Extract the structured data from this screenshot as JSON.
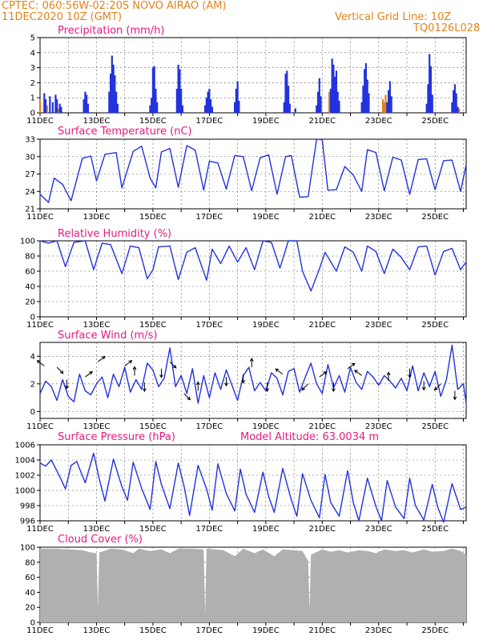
{
  "header": {
    "line1_left": "CPTEC:   060:56W-02:20S   NOVO AIRAO (AM)",
    "line2_left": "11DEC2020 10Z (GMT)",
    "line1_right": "Vertical Grid Line: 10Z",
    "line2_right": "TQ0126L028"
  },
  "colors": {
    "header": "#e2831b",
    "title": "#e5197f",
    "series": "#2233dd",
    "cloud": "#b0b0b0",
    "axis": "#000000"
  },
  "x_axis": {
    "labels": [
      "11DEC",
      "13DEC",
      "15DEC",
      "17DEC",
      "19DEC",
      "21DEC",
      "23DEC",
      "25DEC"
    ],
    "start_day": 11,
    "end_day": 26.1
  },
  "chart_data": [
    {
      "id": "precip",
      "type": "bar",
      "title": "Precipitation (mm/h)",
      "ylim": [
        0,
        5
      ],
      "yticks": [
        "0",
        "1",
        "2",
        "3",
        "4",
        "5"
      ],
      "bars": [
        {
          "day": 11.15,
          "v": 1.3
        },
        {
          "day": 11.2,
          "v": 0.9
        },
        {
          "day": 11.35,
          "v": 1.1
        },
        {
          "day": 11.45,
          "v": 0.7
        },
        {
          "day": 11.55,
          "v": 1.2
        },
        {
          "day": 11.6,
          "v": 0.9
        },
        {
          "day": 11.7,
          "v": 0.6
        },
        {
          "day": 11.75,
          "v": 0.4
        },
        {
          "day": 12.55,
          "v": 0.9
        },
        {
          "day": 12.6,
          "v": 1.4
        },
        {
          "day": 12.65,
          "v": 1.2
        },
        {
          "day": 12.7,
          "v": 0.6
        },
        {
          "day": 13.45,
          "v": 1.4
        },
        {
          "day": 13.5,
          "v": 2.6
        },
        {
          "day": 13.55,
          "v": 3.8
        },
        {
          "day": 13.6,
          "v": 3.2
        },
        {
          "day": 13.65,
          "v": 2.5
        },
        {
          "day": 13.7,
          "v": 1.4
        },
        {
          "day": 13.75,
          "v": 0.6
        },
        {
          "day": 14.9,
          "v": 0.5
        },
        {
          "day": 14.95,
          "v": 1.0
        },
        {
          "day": 15.0,
          "v": 3.0
        },
        {
          "day": 15.05,
          "v": 3.1
        },
        {
          "day": 15.1,
          "v": 1.6
        },
        {
          "day": 15.15,
          "v": 0.7
        },
        {
          "day": 15.85,
          "v": 1.6
        },
        {
          "day": 15.9,
          "v": 3.2
        },
        {
          "day": 15.95,
          "v": 2.9
        },
        {
          "day": 16.0,
          "v": 1.6
        },
        {
          "day": 16.05,
          "v": 0.5
        },
        {
          "day": 16.85,
          "v": 0.5
        },
        {
          "day": 16.9,
          "v": 1.0
        },
        {
          "day": 16.95,
          "v": 1.4
        },
        {
          "day": 17.0,
          "v": 1.6
        },
        {
          "day": 17.05,
          "v": 0.9
        },
        {
          "day": 17.1,
          "v": 0.4
        },
        {
          "day": 17.9,
          "v": 0.7
        },
        {
          "day": 17.95,
          "v": 1.6
        },
        {
          "day": 18.0,
          "v": 2.1
        },
        {
          "day": 18.05,
          "v": 0.8
        },
        {
          "day": 19.65,
          "v": 0.7
        },
        {
          "day": 19.7,
          "v": 2.6
        },
        {
          "day": 19.75,
          "v": 2.8
        },
        {
          "day": 19.8,
          "v": 1.8
        },
        {
          "day": 19.85,
          "v": 0.6
        },
        {
          "day": 20.05,
          "v": 0.3
        },
        {
          "day": 20.8,
          "v": 0.5
        },
        {
          "day": 20.85,
          "v": 1.4
        },
        {
          "day": 20.9,
          "v": 2.3
        },
        {
          "day": 20.95,
          "v": 1.1
        },
        {
          "day": 21.3,
          "v": 1.6
        },
        {
          "day": 21.35,
          "v": 3.6
        },
        {
          "day": 21.4,
          "v": 3.2
        },
        {
          "day": 21.45,
          "v": 2.4
        },
        {
          "day": 21.5,
          "v": 2.8
        },
        {
          "day": 21.55,
          "v": 1.4
        },
        {
          "day": 21.6,
          "v": 0.8
        },
        {
          "day": 22.4,
          "v": 0.7
        },
        {
          "day": 22.45,
          "v": 1.8
        },
        {
          "day": 22.5,
          "v": 2.9
        },
        {
          "day": 22.55,
          "v": 3.3
        },
        {
          "day": 22.6,
          "v": 2.2
        },
        {
          "day": 22.65,
          "v": 1.3
        },
        {
          "day": 23.3,
          "v": 0.7
        },
        {
          "day": 23.35,
          "v": 1.5
        },
        {
          "day": 23.4,
          "v": 2.1
        },
        {
          "day": 23.45,
          "v": 1.1
        },
        {
          "day": 24.7,
          "v": 0.6
        },
        {
          "day": 24.75,
          "v": 1.9
        },
        {
          "day": 24.8,
          "v": 3.9
        },
        {
          "day": 24.85,
          "v": 3.1
        },
        {
          "day": 24.9,
          "v": 1.2
        },
        {
          "day": 25.6,
          "v": 0.7
        },
        {
          "day": 25.65,
          "v": 1.5
        },
        {
          "day": 25.7,
          "v": 1.9
        },
        {
          "day": 25.75,
          "v": 1.3
        },
        {
          "day": 25.8,
          "v": 0.4
        }
      ],
      "orange_bars": [
        {
          "day": 11.0,
          "v": 0.9
        },
        {
          "day": 11.25,
          "v": 0.5
        },
        {
          "day": 11.65,
          "v": 0.3
        },
        {
          "day": 21.25,
          "v": 1.4
        },
        {
          "day": 21.45,
          "v": 1.0
        },
        {
          "day": 21.6,
          "v": 0.5
        },
        {
          "day": 23.15,
          "v": 0.9
        },
        {
          "day": 23.2,
          "v": 0.7
        },
        {
          "day": 23.25,
          "v": 1.2
        },
        {
          "day": 24.9,
          "v": 0.7
        },
        {
          "day": 25.85,
          "v": 0.3
        }
      ]
    },
    {
      "id": "temp",
      "type": "line",
      "title": "Surface Temperature (nC)",
      "ylim": [
        21,
        33
      ],
      "yticks": [
        "21",
        "24",
        "27",
        "30",
        "33"
      ],
      "x": [
        11.0,
        11.3,
        11.5,
        11.8,
        12.1,
        12.5,
        12.8,
        13.0,
        13.3,
        13.7,
        13.9,
        14.3,
        14.6,
        14.9,
        15.1,
        15.3,
        15.6,
        15.9,
        16.2,
        16.5,
        16.8,
        17.0,
        17.3,
        17.6,
        17.9,
        18.2,
        18.5,
        18.8,
        19.1,
        19.4,
        19.7,
        19.9,
        20.2,
        20.5,
        20.8,
        21.0,
        21.2,
        21.5,
        21.8,
        22.1,
        22.4,
        22.6,
        22.9,
        23.2,
        23.5,
        23.8,
        24.1,
        24.4,
        24.7,
        25.0,
        25.3,
        25.6,
        25.9,
        26.1
      ],
      "y": [
        23.5,
        22.1,
        26.3,
        25.2,
        22.4,
        29.7,
        30.1,
        25.8,
        30.4,
        30.7,
        24.6,
        30.9,
        31.8,
        26.3,
        24.6,
        30.8,
        31.4,
        24.7,
        31.9,
        31.1,
        24.2,
        29.2,
        28.9,
        24.4,
        30.2,
        30.0,
        24.1,
        29.8,
        30.3,
        23.5,
        30.0,
        30.2,
        23.0,
        23.1,
        33.0,
        32.9,
        24.2,
        24.3,
        28.3,
        26.8,
        24.0,
        31.2,
        30.7,
        24.1,
        29.9,
        29.4,
        23.5,
        29.5,
        29.6,
        24.3,
        29.3,
        29.4,
        24.0,
        28.6
      ]
    },
    {
      "id": "rh",
      "type": "line",
      "title": "Relative Humidity (%)",
      "ylim": [
        0,
        100
      ],
      "yticks": [
        "0",
        "20",
        "40",
        "60",
        "80",
        "100"
      ],
      "x": [
        11.0,
        11.3,
        11.6,
        11.9,
        12.2,
        12.6,
        12.9,
        13.2,
        13.5,
        13.9,
        14.2,
        14.5,
        14.8,
        15.0,
        15.2,
        15.6,
        15.9,
        16.2,
        16.5,
        16.9,
        17.1,
        17.4,
        17.7,
        18.0,
        18.3,
        18.6,
        18.9,
        19.2,
        19.5,
        19.8,
        20.1,
        20.3,
        20.6,
        20.9,
        21.1,
        21.5,
        21.8,
        22.1,
        22.4,
        22.6,
        22.9,
        23.2,
        23.5,
        23.8,
        24.1,
        24.4,
        24.7,
        25.0,
        25.3,
        25.6,
        25.9,
        26.1
      ],
      "y": [
        100,
        97,
        100,
        66,
        98,
        100,
        62,
        97,
        95,
        57,
        93,
        91,
        50,
        62,
        92,
        93,
        49,
        85,
        91,
        48,
        89,
        70,
        93,
        72,
        91,
        62,
        100,
        98,
        64,
        100,
        100,
        60,
        34,
        63,
        85,
        60,
        92,
        85,
        60,
        93,
        86,
        57,
        89,
        78,
        62,
        92,
        93,
        55,
        86,
        90,
        62,
        72
      ]
    },
    {
      "id": "wind",
      "type": "line",
      "title": "Surface Wind (m/s)",
      "ylim": [
        -0.5,
        5
      ],
      "yticks": [
        "0",
        "2",
        "4"
      ],
      "x": [
        11.0,
        11.2,
        11.4,
        11.6,
        11.8,
        12.0,
        12.2,
        12.4,
        12.6,
        12.8,
        13.0,
        13.2,
        13.4,
        13.6,
        13.8,
        14.0,
        14.2,
        14.4,
        14.6,
        14.8,
        15.0,
        15.2,
        15.4,
        15.6,
        15.8,
        16.0,
        16.2,
        16.4,
        16.6,
        16.8,
        17.0,
        17.2,
        17.4,
        17.6,
        17.8,
        18.0,
        18.2,
        18.4,
        18.6,
        18.8,
        19.0,
        19.2,
        19.4,
        19.6,
        19.8,
        20.0,
        20.2,
        20.4,
        20.6,
        20.8,
        21.0,
        21.2,
        21.4,
        21.6,
        21.8,
        22.0,
        22.2,
        22.4,
        22.6,
        22.8,
        23.0,
        23.2,
        23.4,
        23.6,
        23.8,
        24.0,
        24.2,
        24.4,
        24.6,
        24.8,
        25.0,
        25.2,
        25.4,
        25.6,
        25.8,
        26.0,
        26.1
      ],
      "y": [
        1.3,
        2.2,
        1.8,
        0.8,
        2.3,
        1.1,
        0.7,
        2.7,
        1.5,
        1.2,
        2.0,
        2.5,
        1.0,
        2.7,
        1.8,
        3.2,
        1.4,
        2.3,
        1.6,
        3.5,
        3.0,
        1.8,
        2.4,
        4.6,
        1.8,
        2.6,
        1.3,
        3.1,
        0.6,
        2.6,
        1.0,
        2.8,
        1.6,
        3.0,
        1.9,
        0.8,
        2.6,
        3.2,
        1.5,
        2.1,
        1.5,
        2.8,
        2.4,
        1.2,
        2.9,
        3.1,
        1.4,
        2.5,
        3.5,
        2.0,
        1.3,
        3.4,
        1.7,
        2.6,
        1.4,
        3.2,
        2.1,
        1.6,
        2.9,
        2.5,
        1.9,
        2.6,
        2.2,
        1.7,
        2.4,
        1.5,
        3.3,
        1.5,
        2.8,
        1.8,
        2.9,
        1.1,
        2.3,
        4.8,
        1.6,
        2.0,
        0.6
      ]
    },
    {
      "id": "pres",
      "type": "line",
      "title": "Surface Pressure (hPa)",
      "ylim": [
        996,
        1006
      ],
      "yticks": [
        "996",
        "998",
        "1000",
        "1002",
        "1004",
        "1006"
      ],
      "x": [
        11.0,
        11.2,
        11.4,
        11.7,
        11.9,
        12.1,
        12.3,
        12.6,
        12.9,
        13.1,
        13.3,
        13.6,
        13.9,
        14.1,
        14.3,
        14.6,
        14.9,
        15.1,
        15.3,
        15.6,
        15.9,
        16.1,
        16.3,
        16.6,
        16.9,
        17.1,
        17.3,
        17.6,
        17.9,
        18.1,
        18.3,
        18.6,
        18.9,
        19.1,
        19.3,
        19.6,
        19.9,
        20.1,
        20.3,
        20.6,
        20.9,
        21.1,
        21.3,
        21.6,
        21.9,
        22.1,
        22.3,
        22.6,
        22.9,
        23.1,
        23.3,
        23.6,
        23.9,
        24.1,
        24.3,
        24.6,
        24.9,
        25.1,
        25.3,
        25.6,
        25.9,
        26.1
      ],
      "y": [
        1003.6,
        1003.2,
        1004.0,
        1001.8,
        1000.2,
        1003.3,
        1003.8,
        1001.0,
        1004.9,
        1001.5,
        998.6,
        1004.1,
        1000.5,
        998.7,
        1003.7,
        1000.3,
        997.5,
        1003.8,
        1000.8,
        997.6,
        1003.6,
        1000.6,
        996.7,
        1003.3,
        1000.2,
        997.4,
        1003.5,
        999.6,
        997.3,
        1002.8,
        999.5,
        997.1,
        1002.4,
        999.2,
        997.1,
        1002.9,
        998.8,
        996.6,
        1002.2,
        998.7,
        996.4,
        1002.1,
        998.4,
        996.6,
        1002.6,
        998.4,
        996.0,
        1001.6,
        997.9,
        996.0,
        1001.3,
        997.8,
        996.3,
        1001.6,
        998.0,
        996.1,
        1000.8,
        997.7,
        995.8,
        1000.9,
        997.5,
        997.8
      ]
    },
    {
      "id": "cloud",
      "type": "area",
      "title": "Cloud Cover (%)",
      "ylim": [
        0,
        100
      ],
      "yticks": [
        "0",
        "20",
        "40",
        "60",
        "80",
        "100"
      ],
      "x": [
        11.0,
        11.5,
        12.0,
        12.5,
        12.8,
        13.0,
        13.05,
        13.1,
        13.5,
        13.9,
        14.3,
        14.5,
        14.9,
        15.3,
        15.6,
        15.9,
        16.3,
        16.8,
        16.85,
        16.9,
        17.5,
        17.9,
        18.2,
        18.6,
        18.9,
        19.3,
        19.6,
        20.0,
        20.3,
        20.5,
        20.55,
        20.6,
        21.0,
        21.3,
        21.6,
        21.9,
        22.3,
        22.6,
        22.9,
        23.2,
        23.6,
        23.9,
        24.2,
        24.6,
        24.9,
        25.3,
        25.6,
        25.9,
        26.1
      ],
      "y": [
        98,
        98,
        97,
        96,
        93,
        92,
        20,
        93,
        98,
        97,
        92,
        98,
        95,
        97,
        92,
        98,
        98,
        97,
        10,
        98,
        96,
        88,
        98,
        92,
        97,
        88,
        97,
        96,
        95,
        82,
        15,
        90,
        97,
        94,
        96,
        93,
        96,
        95,
        92,
        97,
        95,
        96,
        93,
        97,
        94,
        95,
        98,
        95,
        90
      ]
    }
  ],
  "panel_labels": {
    "model_altitude": "Model Altitude: 63.0034 m"
  },
  "wind_arrows": [
    {
      "day": 11.15,
      "v": 3.3,
      "dir": "upleft"
    },
    {
      "day": 11.6,
      "v": 3.2,
      "dir": "downright"
    },
    {
      "day": 11.95,
      "v": 2.3,
      "dir": "down"
    },
    {
      "day": 12.6,
      "v": 2.5,
      "dir": "upright"
    },
    {
      "day": 13.05,
      "v": 3.6,
      "dir": "upright"
    },
    {
      "day": 14.0,
      "v": 3.3,
      "dir": "upright"
    },
    {
      "day": 14.35,
      "v": 2.6,
      "dir": "up"
    },
    {
      "day": 14.7,
      "v": 2.1,
      "dir": "down"
    },
    {
      "day": 15.3,
      "v": 3.1,
      "dir": "down"
    },
    {
      "day": 15.6,
      "v": 3.6,
      "dir": "downright"
    },
    {
      "day": 16.1,
      "v": 1.3,
      "dir": "downright"
    },
    {
      "day": 16.6,
      "v": 1.5,
      "dir": "up"
    },
    {
      "day": 17.6,
      "v": 2.5,
      "dir": "down"
    },
    {
      "day": 18.2,
      "v": 2.7,
      "dir": "down"
    },
    {
      "day": 18.5,
      "v": 3.2,
      "dir": "up"
    },
    {
      "day": 19.05,
      "v": 2.1,
      "dir": "down"
    },
    {
      "day": 19.6,
      "v": 2.7,
      "dir": "upleft"
    },
    {
      "day": 20.5,
      "v": 2.0,
      "dir": "downleft"
    },
    {
      "day": 20.9,
      "v": 2.5,
      "dir": "upright"
    },
    {
      "day": 21.4,
      "v": 2.1,
      "dir": "down"
    },
    {
      "day": 21.9,
      "v": 3.1,
      "dir": "upright"
    },
    {
      "day": 22.4,
      "v": 2.6,
      "dir": "upleft"
    },
    {
      "day": 23.35,
      "v": 2.2,
      "dir": "up"
    },
    {
      "day": 24.1,
      "v": 3.1,
      "dir": "down"
    },
    {
      "day": 24.6,
      "v": 2.2,
      "dir": "down"
    },
    {
      "day": 25.2,
      "v": 2.0,
      "dir": "downleft"
    },
    {
      "day": 25.7,
      "v": 1.5,
      "dir": "down"
    }
  ]
}
